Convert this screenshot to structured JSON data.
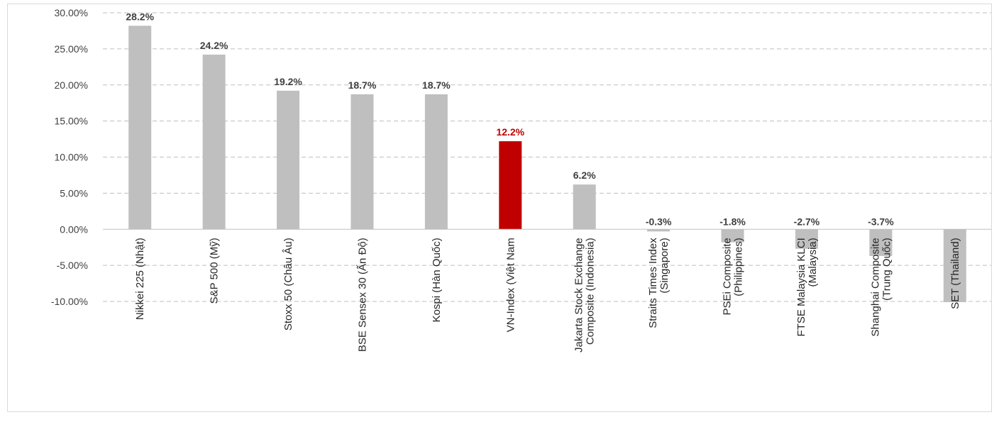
{
  "chart_data": {
    "type": "bar",
    "title": "",
    "xlabel": "",
    "ylabel": "",
    "ylim": [
      -10,
      30
    ],
    "y_ticks": [
      "30.00%",
      "25.00%",
      "20.00%",
      "15.00%",
      "10.00%",
      "5.00%",
      "0.00%",
      "-5.00%",
      "-10.00%"
    ],
    "grid": "horizontal dashed",
    "categories": [
      [
        "Nikkei 225 (Nhật)"
      ],
      [
        "S&P 500 (Mỹ)"
      ],
      [
        "Stoxx 50 (Châu Âu)"
      ],
      [
        "BSE Sensex 30 (Ấn Độ)"
      ],
      [
        "Kospi (Hàn Quốc)"
      ],
      [
        "VN-Index (Việt Nam"
      ],
      [
        "Jakarta Stock Exchange",
        "Composite (Indonesia)"
      ],
      [
        "Straits Times Index",
        "(Singapore)"
      ],
      [
        "PSEi Composite",
        "(Philippines)"
      ],
      [
        "FTSE Malaysia KLCI",
        "(Malaysia)"
      ],
      [
        "Shanghai Composite",
        "(Trung Quốc)"
      ],
      [
        "SET (Thailand)"
      ]
    ],
    "values": [
      28.2,
      24.2,
      19.2,
      18.7,
      18.7,
      12.2,
      6.2,
      -0.3,
      -1.8,
      -2.7,
      -3.7,
      -10.1
    ],
    "data_labels": [
      "28.2%",
      "24.2%",
      "19.2%",
      "18.7%",
      "18.7%",
      "12.2%",
      "6.2%",
      "-0.3%",
      "-1.8%",
      "-2.7%",
      "-3.7%",
      ""
    ],
    "highlight_index": 5,
    "colors": {
      "bar": "#bfbfbf",
      "highlight": "#c00000",
      "label": "#404040",
      "highlight_label": "#c00000",
      "grid": "#bfbfbf",
      "axis_text": "#404040",
      "category_text": "#262626"
    }
  }
}
